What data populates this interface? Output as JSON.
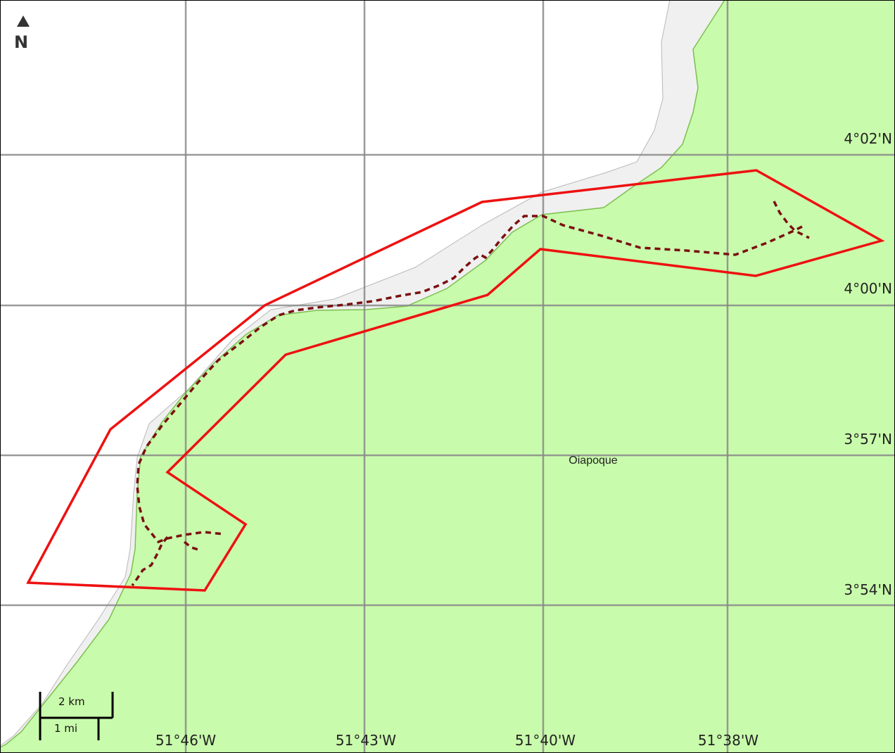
{
  "map": {
    "colors": {
      "land": "#c9fbac",
      "land_edge": "#7ac04e",
      "shore": "#f0f0f0",
      "shore_edge": "#b8b8b8",
      "sea": "#ffffff",
      "grid": "#888888",
      "boundary": "#ee1111",
      "track": "#7a1010"
    },
    "north_arrow": {
      "icon": "north-arrow-icon",
      "letter": "N"
    },
    "latitude_labels": [
      "4°02'N",
      "4°00'N",
      "3°57'N",
      "3°54'N"
    ],
    "longitude_labels": [
      "51°46'W",
      "51°43'W",
      "51°40'W",
      "51°38'W"
    ],
    "places": [
      {
        "name": "Oiapoque"
      }
    ],
    "scale_bar": {
      "metric": "2 km",
      "imperial": "1 mi"
    }
  }
}
